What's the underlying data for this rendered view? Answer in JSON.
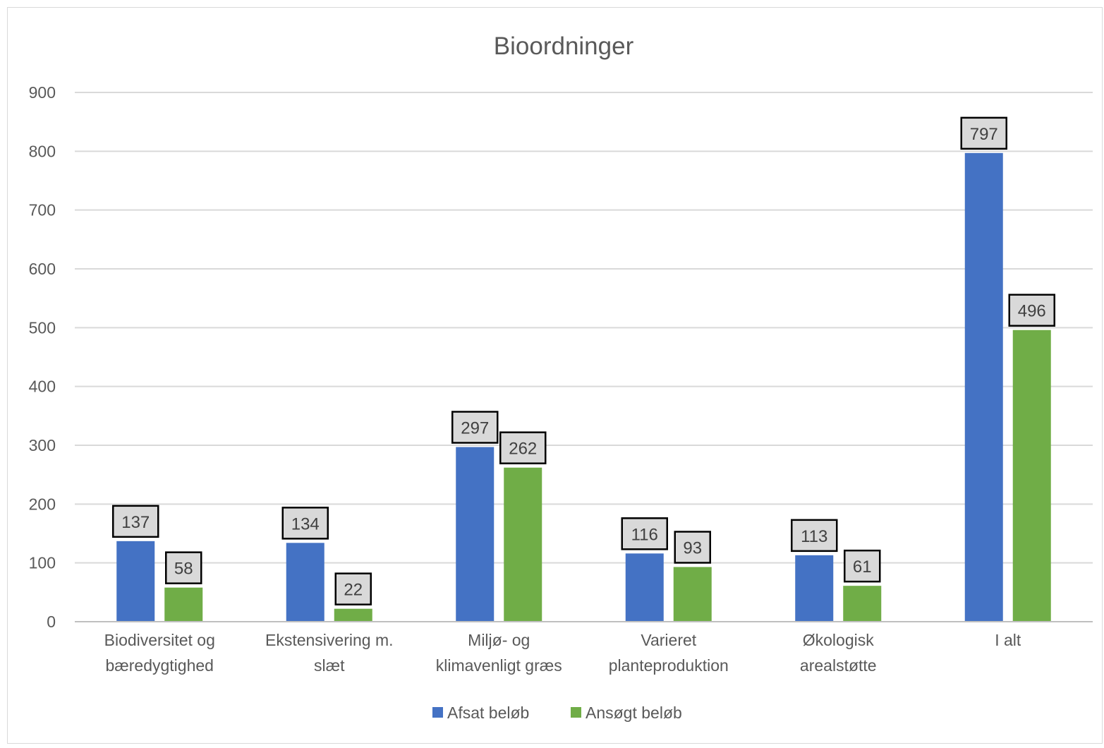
{
  "chart_data": {
    "type": "bar",
    "title": "Bioordninger",
    "xlabel": "",
    "ylabel": "",
    "ylim": [
      0,
      900
    ],
    "yticks": [
      0,
      100,
      200,
      300,
      400,
      500,
      600,
      700,
      800,
      900
    ],
    "grid": true,
    "legend_position": "bottom",
    "categories": [
      [
        "Biodiversitet og",
        "bæredygtighed"
      ],
      [
        "Ekstensivering m.",
        "slæt"
      ],
      [
        "Miljø- og",
        "klimavenligt græs"
      ],
      [
        "Varieret",
        "planteproduktion"
      ],
      [
        "Økologisk",
        "arealstøtte"
      ],
      [
        "I alt"
      ]
    ],
    "series": [
      {
        "name": "Afsat beløb",
        "color": "#4472c4",
        "values": [
          137,
          134,
          297,
          116,
          113,
          797
        ]
      },
      {
        "name": "Ansøgt beløb",
        "color": "#70ad47",
        "values": [
          58,
          22,
          262,
          93,
          61,
          496
        ]
      }
    ],
    "data_labels": true
  }
}
